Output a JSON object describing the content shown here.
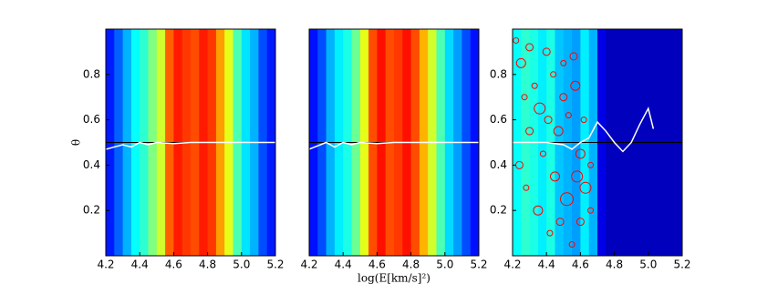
{
  "chart_data": [
    {
      "type": "heatmap",
      "ylabel": "θ",
      "bins": [
        4.2,
        4.25,
        4.3,
        4.35,
        4.4,
        4.45,
        4.5,
        4.55,
        4.6,
        4.65,
        4.7,
        4.75,
        4.8,
        4.85,
        4.9,
        4.95,
        5.0,
        5.05,
        5.1,
        5.15,
        5.2
      ],
      "intensity": [
        0.15,
        0.22,
        0.3,
        0.38,
        0.42,
        0.5,
        0.58,
        0.78,
        0.85,
        0.82,
        0.8,
        0.85,
        0.82,
        0.72,
        0.6,
        0.45,
        0.35,
        0.3,
        0.2,
        0.15
      ],
      "xlim": [
        4.2,
        5.2
      ],
      "ylim": [
        0,
        1
      ],
      "xticks": [
        4.2,
        4.4,
        4.6,
        4.8,
        {
          "value": 5,
          "label": "5.0"
        },
        5.2
      ],
      "yticks": [
        0.2,
        0.4,
        0.6,
        0.8
      ],
      "hline": 0.5,
      "series": [
        {
          "color": "#ffffff",
          "x": [
            4.2,
            4.3,
            4.35,
            4.4,
            4.45,
            4.5,
            4.6,
            4.7,
            4.8,
            4.9,
            5.0,
            5.1,
            5.2
          ],
          "values": [
            0.47,
            0.49,
            0.48,
            0.5,
            0.49,
            0.5,
            0.495,
            0.5,
            0.5,
            0.5,
            0.5,
            0.5,
            0.5
          ]
        }
      ]
    },
    {
      "type": "heatmap",
      "xlabel": "log(E[km/s]²)",
      "bins": [
        4.2,
        4.25,
        4.3,
        4.35,
        4.4,
        4.45,
        4.5,
        4.55,
        4.6,
        4.65,
        4.7,
        4.75,
        4.8,
        4.85,
        4.9,
        4.95,
        5.0,
        5.05,
        5.1,
        5.15,
        5.2
      ],
      "intensity": [
        0.14,
        0.2,
        0.3,
        0.36,
        0.4,
        0.48,
        0.6,
        0.8,
        0.86,
        0.8,
        0.82,
        0.86,
        0.8,
        0.7,
        0.58,
        0.45,
        0.34,
        0.28,
        0.2,
        0.14
      ],
      "xlim": [
        4.2,
        5.2
      ],
      "ylim": [
        0,
        1
      ],
      "xticks": [
        4.2,
        4.4,
        4.6,
        4.8,
        {
          "value": 5,
          "label": "5.0"
        },
        5.2
      ],
      "hline": 0.5,
      "series": [
        {
          "color": "#ffffff",
          "x": [
            4.2,
            4.3,
            4.35,
            4.4,
            4.45,
            4.5,
            4.6,
            4.7,
            4.8,
            4.9,
            5.0,
            5.1,
            5.2
          ],
          "values": [
            0.47,
            0.5,
            0.48,
            0.5,
            0.49,
            0.5,
            0.495,
            0.5,
            0.5,
            0.5,
            0.5,
            0.5,
            0.5
          ]
        }
      ]
    },
    {
      "type": "heatmap",
      "bins": [
        4.2,
        4.25,
        4.3,
        4.35,
        4.4,
        4.45,
        4.5,
        4.55,
        4.6,
        4.65,
        4.7,
        4.75,
        4.8,
        4.85,
        4.9,
        4.95,
        5.0,
        5.05,
        5.1,
        5.15,
        5.2
      ],
      "intensity": [
        0.38,
        0.42,
        0.4,
        0.36,
        0.4,
        0.32,
        0.3,
        0.28,
        0.36,
        0.3,
        0.1,
        0.06,
        0.06,
        0.06,
        0.06,
        0.06,
        0.06,
        0.06,
        0.06,
        0.06
      ],
      "xlim": [
        4.2,
        5.2
      ],
      "ylim": [
        0,
        1
      ],
      "xticks": [
        4.2,
        4.4,
        4.6,
        4.8,
        {
          "value": 5,
          "label": "5.0"
        },
        5.2
      ],
      "yticks": [
        0.2,
        0.4,
        0.6,
        0.8
      ],
      "hline": 0.5,
      "series": [
        {
          "color": "#ffffff",
          "x": [
            4.2,
            4.3,
            4.4,
            4.5,
            4.55,
            4.6,
            4.65,
            4.7,
            4.75,
            4.8,
            4.85,
            4.9,
            4.95,
            5.0,
            5.03
          ],
          "values": [
            0.5,
            0.5,
            0.5,
            0.49,
            0.47,
            0.5,
            0.52,
            0.59,
            0.55,
            0.5,
            0.46,
            0.5,
            0.58,
            0.65,
            0.56
          ]
        }
      ],
      "scatter": {
        "color": "#ff0000",
        "x": [
          4.22,
          4.25,
          4.3,
          4.33,
          4.36,
          4.4,
          4.44,
          4.47,
          4.5,
          4.53,
          4.56,
          4.6,
          4.63,
          4.66,
          4.24,
          4.28,
          4.35,
          4.42,
          4.48,
          4.55,
          4.58,
          4.62,
          4.3,
          4.38,
          4.45,
          4.52,
          4.6,
          4.66,
          4.27,
          4.41,
          4.5,
          4.57
        ],
        "y": [
          0.95,
          0.85,
          0.92,
          0.75,
          0.65,
          0.9,
          0.8,
          0.55,
          0.7,
          0.62,
          0.88,
          0.45,
          0.3,
          0.2,
          0.4,
          0.3,
          0.2,
          0.1,
          0.15,
          0.05,
          0.35,
          0.6,
          0.55,
          0.45,
          0.35,
          0.25,
          0.15,
          0.4,
          0.7,
          0.6,
          0.85,
          0.75
        ],
        "size": [
          3,
          5,
          4,
          3,
          6,
          4,
          3,
          5,
          4,
          3,
          4,
          5,
          6,
          3,
          4,
          3,
          5,
          3,
          4,
          3,
          6,
          3,
          4,
          3,
          5,
          7,
          4,
          3,
          3,
          4,
          3,
          5
        ]
      }
    }
  ]
}
